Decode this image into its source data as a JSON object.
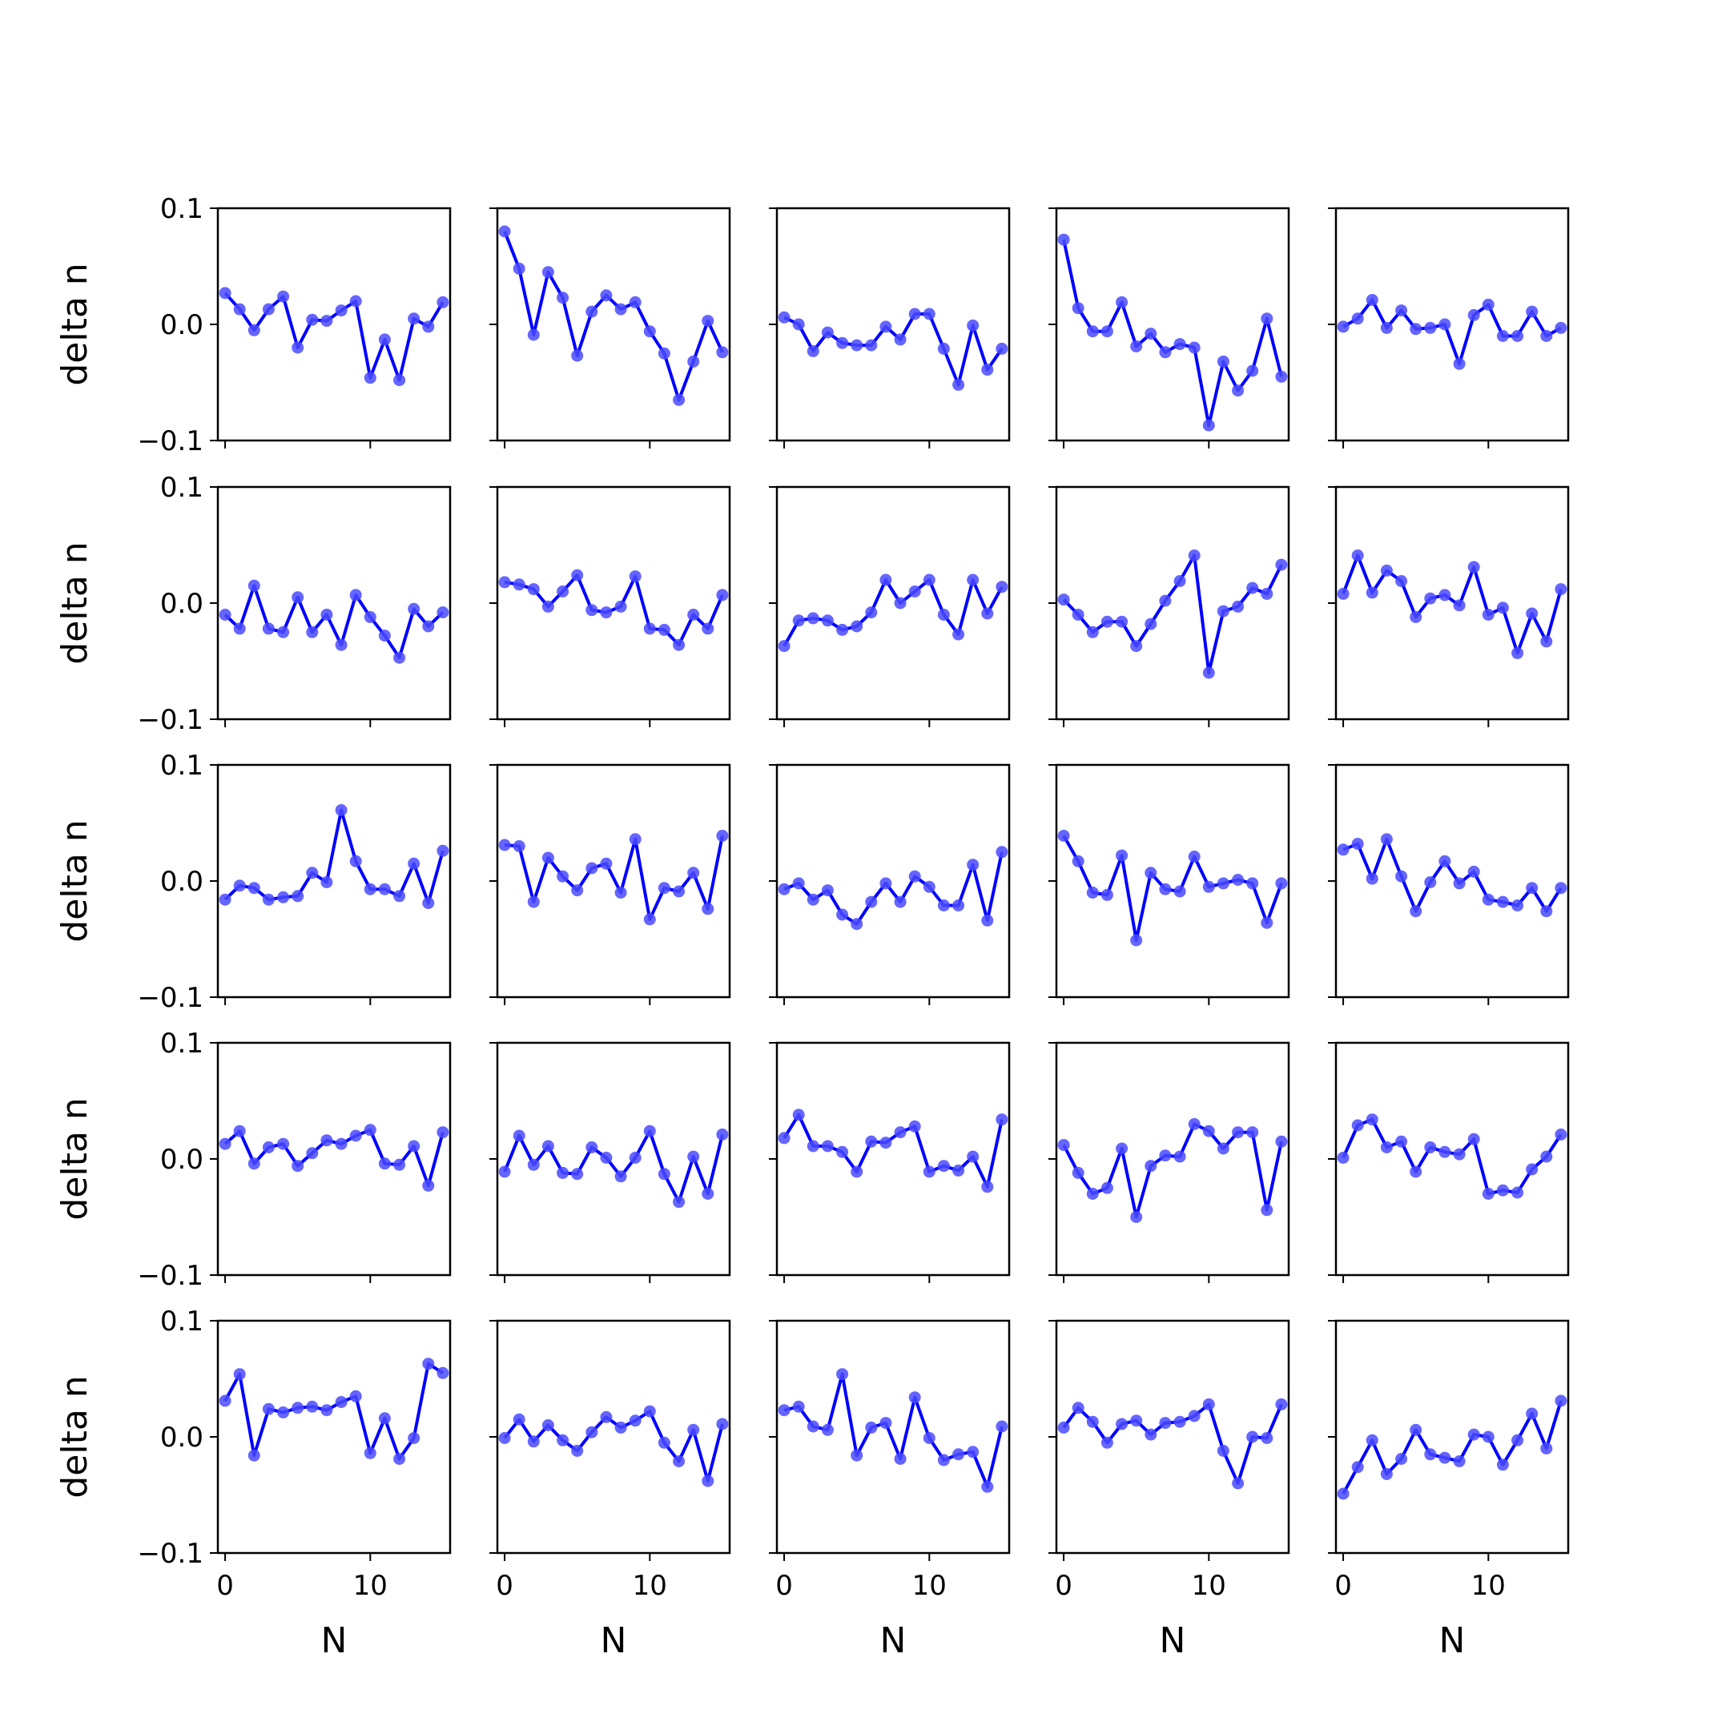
{
  "colors": {
    "line": "#0000ff",
    "marker": "#4a4aff",
    "axes": "#000000",
    "background": "#ffffff"
  },
  "axis_labels": {
    "x": "N",
    "y": "delta n"
  },
  "chart_data": {
    "type": "line",
    "layout": "grid 5x5, shared x and y axes",
    "x": [
      0,
      1,
      2,
      3,
      4,
      5,
      6,
      7,
      8,
      9,
      10,
      11,
      12,
      13,
      14,
      15
    ],
    "xlim": [
      -0.5,
      15.5
    ],
    "ylim": [
      -0.1,
      0.1
    ],
    "xticks": [
      0,
      10
    ],
    "xtick_labels": [
      "0",
      "10"
    ],
    "yticks": [
      0.1,
      0.0,
      -0.1
    ],
    "ytick_labels": [
      "0.1",
      "0.0",
      "−0.1"
    ],
    "xlabel": "N",
    "ylabel": "delta n",
    "grid": false,
    "markers": true,
    "panels": [
      {
        "row": 1,
        "col": 1,
        "values": [
          0.027,
          0.013,
          -0.005,
          0.013,
          0.024,
          -0.02,
          0.004,
          0.003,
          0.012,
          0.02,
          -0.046,
          -0.013,
          -0.048,
          0.005,
          -0.002,
          0.019
        ]
      },
      {
        "row": 1,
        "col": 2,
        "values": [
          0.08,
          0.048,
          -0.009,
          0.045,
          0.023,
          -0.027,
          0.011,
          0.025,
          0.013,
          0.019,
          -0.006,
          -0.025,
          -0.065,
          -0.032,
          0.003,
          -0.024
        ]
      },
      {
        "row": 1,
        "col": 3,
        "values": [
          0.006,
          0.0,
          -0.023,
          -0.007,
          -0.016,
          -0.018,
          -0.018,
          -0.002,
          -0.013,
          0.009,
          0.009,
          -0.021,
          -0.052,
          -0.001,
          -0.039,
          -0.021
        ]
      },
      {
        "row": 1,
        "col": 4,
        "values": [
          0.073,
          0.014,
          -0.006,
          -0.006,
          0.019,
          -0.019,
          -0.008,
          -0.024,
          -0.017,
          -0.02,
          -0.087,
          -0.032,
          -0.057,
          -0.04,
          0.005,
          -0.045
        ]
      },
      {
        "row": 1,
        "col": 5,
        "values": [
          -0.002,
          0.005,
          0.021,
          -0.003,
          0.012,
          -0.004,
          -0.003,
          0.0,
          -0.034,
          0.008,
          0.017,
          -0.01,
          -0.01,
          0.011,
          -0.01,
          -0.003
        ]
      },
      {
        "row": 2,
        "col": 1,
        "values": [
          -0.01,
          -0.022,
          0.015,
          -0.022,
          -0.025,
          0.005,
          -0.025,
          -0.01,
          -0.036,
          0.007,
          -0.012,
          -0.028,
          -0.047,
          -0.005,
          -0.02,
          -0.008
        ]
      },
      {
        "row": 2,
        "col": 2,
        "values": [
          0.018,
          0.016,
          0.012,
          -0.003,
          0.01,
          0.024,
          -0.006,
          -0.008,
          -0.003,
          0.023,
          -0.022,
          -0.023,
          -0.036,
          -0.01,
          -0.022,
          0.007
        ]
      },
      {
        "row": 2,
        "col": 3,
        "values": [
          -0.037,
          -0.015,
          -0.013,
          -0.015,
          -0.023,
          -0.02,
          -0.008,
          0.02,
          0.0,
          0.01,
          0.02,
          -0.01,
          -0.027,
          0.02,
          -0.009,
          0.014
        ]
      },
      {
        "row": 2,
        "col": 4,
        "values": [
          0.003,
          -0.01,
          -0.025,
          -0.016,
          -0.016,
          -0.037,
          -0.018,
          0.002,
          0.019,
          0.041,
          -0.06,
          -0.007,
          -0.003,
          0.013,
          0.008,
          0.033
        ]
      },
      {
        "row": 2,
        "col": 5,
        "values": [
          0.008,
          0.041,
          0.009,
          0.028,
          0.019,
          -0.012,
          0.004,
          0.007,
          -0.002,
          0.031,
          -0.01,
          -0.004,
          -0.043,
          -0.009,
          -0.033,
          0.012
        ]
      },
      {
        "row": 3,
        "col": 1,
        "values": [
          -0.016,
          -0.004,
          -0.006,
          -0.016,
          -0.014,
          -0.013,
          0.007,
          -0.001,
          0.061,
          0.017,
          -0.007,
          -0.007,
          -0.013,
          0.015,
          -0.019,
          0.026
        ]
      },
      {
        "row": 3,
        "col": 2,
        "values": [
          0.031,
          0.03,
          -0.018,
          0.02,
          0.004,
          -0.008,
          0.011,
          0.015,
          -0.01,
          0.036,
          -0.033,
          -0.006,
          -0.009,
          0.007,
          -0.024,
          0.039
        ]
      },
      {
        "row": 3,
        "col": 3,
        "values": [
          -0.007,
          -0.002,
          -0.016,
          -0.008,
          -0.029,
          -0.037,
          -0.018,
          -0.002,
          -0.018,
          0.004,
          -0.005,
          -0.021,
          -0.021,
          0.014,
          -0.034,
          0.025
        ]
      },
      {
        "row": 3,
        "col": 4,
        "values": [
          0.039,
          0.017,
          -0.01,
          -0.012,
          0.022,
          -0.051,
          0.007,
          -0.007,
          -0.009,
          0.021,
          -0.005,
          -0.002,
          0.001,
          -0.002,
          -0.036,
          -0.002
        ]
      },
      {
        "row": 3,
        "col": 5,
        "values": [
          0.027,
          0.032,
          0.002,
          0.036,
          0.004,
          -0.026,
          -0.001,
          0.017,
          -0.002,
          0.008,
          -0.016,
          -0.018,
          -0.021,
          -0.006,
          -0.026,
          -0.006
        ]
      },
      {
        "row": 4,
        "col": 1,
        "values": [
          0.013,
          0.024,
          -0.004,
          0.01,
          0.013,
          -0.006,
          0.005,
          0.016,
          0.013,
          0.02,
          0.025,
          -0.004,
          -0.005,
          0.011,
          -0.023,
          0.023
        ]
      },
      {
        "row": 4,
        "col": 2,
        "values": [
          -0.011,
          0.02,
          -0.005,
          0.011,
          -0.012,
          -0.013,
          0.01,
          0.001,
          -0.015,
          0.001,
          0.024,
          -0.013,
          -0.037,
          0.002,
          -0.03,
          0.021
        ]
      },
      {
        "row": 4,
        "col": 3,
        "values": [
          0.018,
          0.038,
          0.011,
          0.011,
          0.006,
          -0.011,
          0.015,
          0.014,
          0.023,
          0.028,
          -0.011,
          -0.006,
          -0.01,
          0.002,
          -0.024,
          0.034
        ]
      },
      {
        "row": 4,
        "col": 4,
        "values": [
          0.012,
          -0.012,
          -0.03,
          -0.025,
          0.009,
          -0.05,
          -0.006,
          0.003,
          0.002,
          0.03,
          0.024,
          0.009,
          0.023,
          0.023,
          -0.044,
          0.015
        ]
      },
      {
        "row": 4,
        "col": 5,
        "values": [
          0.001,
          0.029,
          0.034,
          0.01,
          0.015,
          -0.011,
          0.01,
          0.006,
          0.004,
          0.017,
          -0.03,
          -0.027,
          -0.029,
          -0.009,
          0.002,
          0.021
        ]
      },
      {
        "row": 5,
        "col": 1,
        "values": [
          0.031,
          0.054,
          -0.016,
          0.024,
          0.021,
          0.025,
          0.026,
          0.023,
          0.03,
          0.035,
          -0.014,
          0.016,
          -0.019,
          -0.001,
          0.063,
          0.055
        ]
      },
      {
        "row": 5,
        "col": 2,
        "values": [
          -0.001,
          0.015,
          -0.004,
          0.01,
          -0.003,
          -0.012,
          0.004,
          0.017,
          0.008,
          0.014,
          0.022,
          -0.005,
          -0.021,
          0.006,
          -0.038,
          0.011
        ]
      },
      {
        "row": 5,
        "col": 3,
        "values": [
          0.023,
          0.026,
          0.009,
          0.006,
          0.054,
          -0.016,
          0.008,
          0.012,
          -0.019,
          0.034,
          -0.001,
          -0.02,
          -0.015,
          -0.013,
          -0.043,
          0.009
        ]
      },
      {
        "row": 5,
        "col": 4,
        "values": [
          0.008,
          0.025,
          0.013,
          -0.005,
          0.011,
          0.014,
          0.002,
          0.012,
          0.013,
          0.018,
          0.028,
          -0.012,
          -0.04,
          0.0,
          -0.001,
          0.028
        ]
      },
      {
        "row": 5,
        "col": 5,
        "values": [
          -0.049,
          -0.026,
          -0.003,
          -0.032,
          -0.019,
          0.006,
          -0.015,
          -0.018,
          -0.021,
          0.002,
          0.0,
          -0.024,
          -0.003,
          0.02,
          -0.01,
          0.031
        ]
      }
    ]
  }
}
